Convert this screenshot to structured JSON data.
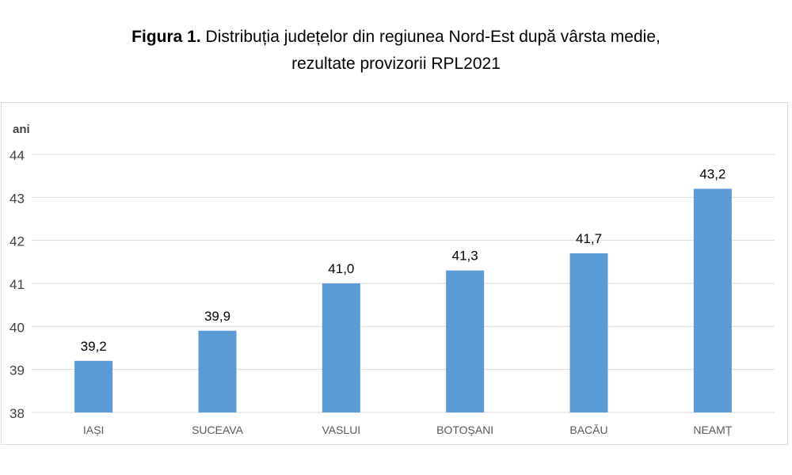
{
  "title": {
    "bold": "Figura 1.",
    "line1": "Distribuția județelor din regiunea Nord-Est după vârsta medie,",
    "line2": "rezultate provizorii RPL2021"
  },
  "chart_data": {
    "type": "bar",
    "ylabel": "ani",
    "xlabel": "",
    "ylim": [
      38,
      44
    ],
    "yticks": [
      38,
      39,
      40,
      41,
      42,
      43,
      44
    ],
    "grid": true,
    "categories": [
      "IAȘI",
      "SUCEAVA",
      "VASLUI",
      "BOTOȘANI",
      "BACĂU",
      "NEAMȚ"
    ],
    "values": [
      39.2,
      39.9,
      41.0,
      41.3,
      41.7,
      43.2
    ],
    "value_labels": [
      "39,2",
      "39,9",
      "41,0",
      "41,3",
      "41,7",
      "43,2"
    ],
    "bar_color": "#5b9bd5",
    "grid_color": "#d9d9d9"
  }
}
